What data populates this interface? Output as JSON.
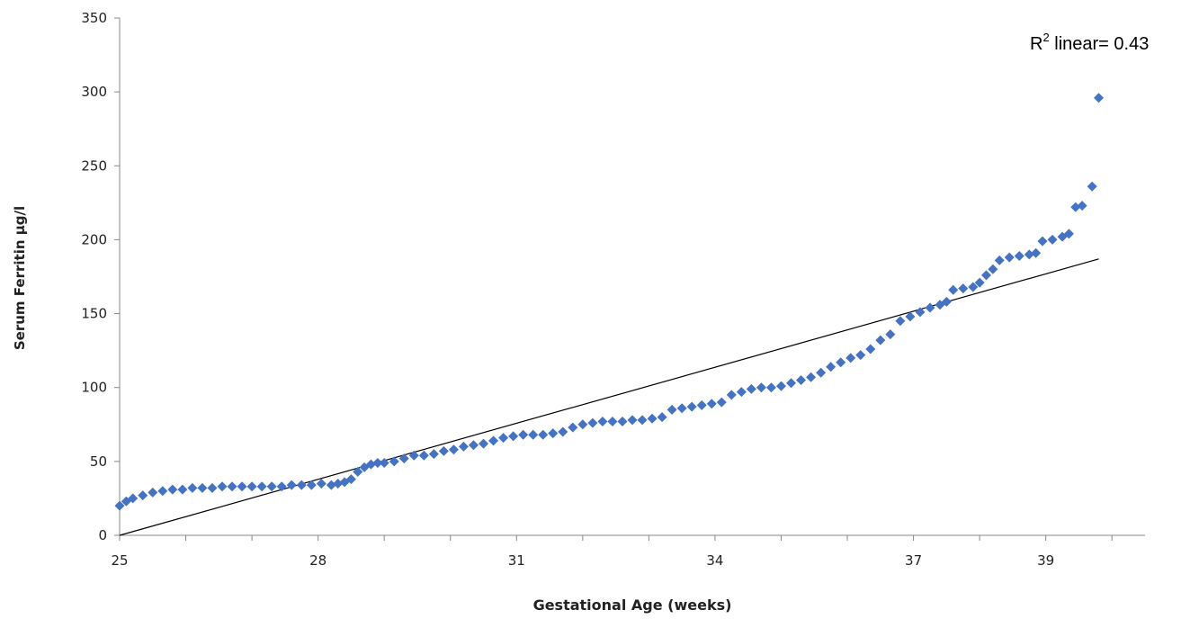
{
  "chart_data": {
    "type": "scatter",
    "xlabel": "Gestational Age (weeks)",
    "ylabel": "Serum Ferritin μg/l",
    "xlim": [
      25,
      40.5
    ],
    "ylim": [
      0,
      350
    ],
    "x_ticks": [
      25,
      28,
      31,
      34,
      37,
      39
    ],
    "y_ticks": [
      0,
      50,
      100,
      150,
      200,
      250,
      300,
      350
    ],
    "grid": false,
    "legend": "none",
    "annotation": {
      "base": "R",
      "sup": "2",
      "text": " linear= 0.43"
    },
    "marker_color": "#4472C4",
    "line_color": "#000000",
    "series": [
      {
        "points": [
          [
            25.0,
            20
          ],
          [
            25.1,
            23
          ],
          [
            25.2,
            25
          ],
          [
            25.35,
            27
          ],
          [
            25.5,
            29
          ],
          [
            25.65,
            30
          ],
          [
            25.8,
            31
          ],
          [
            25.95,
            31
          ],
          [
            26.1,
            32
          ],
          [
            26.25,
            32
          ],
          [
            26.4,
            32
          ],
          [
            26.55,
            33
          ],
          [
            26.7,
            33
          ],
          [
            26.85,
            33
          ],
          [
            27.0,
            33
          ],
          [
            27.15,
            33
          ],
          [
            27.3,
            33
          ],
          [
            27.45,
            33
          ],
          [
            27.6,
            34
          ],
          [
            27.75,
            34
          ],
          [
            27.9,
            34
          ],
          [
            28.05,
            35
          ],
          [
            28.2,
            34
          ],
          [
            28.3,
            35
          ],
          [
            28.4,
            36
          ],
          [
            28.5,
            38
          ],
          [
            28.6,
            43
          ],
          [
            28.7,
            46
          ],
          [
            28.8,
            48
          ],
          [
            28.9,
            49
          ],
          [
            29.0,
            49
          ],
          [
            29.15,
            50
          ],
          [
            29.3,
            52
          ],
          [
            29.45,
            54
          ],
          [
            29.6,
            54
          ],
          [
            29.75,
            55
          ],
          [
            29.9,
            57
          ],
          [
            30.05,
            58
          ],
          [
            30.2,
            60
          ],
          [
            30.35,
            61
          ],
          [
            30.5,
            62
          ],
          [
            30.65,
            64
          ],
          [
            30.8,
            66
          ],
          [
            30.95,
            67
          ],
          [
            31.1,
            68
          ],
          [
            31.25,
            68
          ],
          [
            31.4,
            68
          ],
          [
            31.55,
            69
          ],
          [
            31.7,
            70
          ],
          [
            31.85,
            73
          ],
          [
            32.0,
            75
          ],
          [
            32.15,
            76
          ],
          [
            32.3,
            77
          ],
          [
            32.45,
            77
          ],
          [
            32.6,
            77
          ],
          [
            32.75,
            78
          ],
          [
            32.9,
            78
          ],
          [
            33.05,
            79
          ],
          [
            33.2,
            80
          ],
          [
            33.35,
            85
          ],
          [
            33.5,
            86
          ],
          [
            33.65,
            87
          ],
          [
            33.8,
            88
          ],
          [
            33.95,
            89
          ],
          [
            34.1,
            90
          ],
          [
            34.25,
            95
          ],
          [
            34.4,
            97
          ],
          [
            34.55,
            99
          ],
          [
            34.7,
            100
          ],
          [
            34.85,
            100
          ],
          [
            35.0,
            101
          ],
          [
            35.15,
            103
          ],
          [
            35.3,
            105
          ],
          [
            35.45,
            107
          ],
          [
            35.6,
            110
          ],
          [
            35.75,
            114
          ],
          [
            35.9,
            117
          ],
          [
            36.05,
            120
          ],
          [
            36.2,
            122
          ],
          [
            36.35,
            126
          ],
          [
            36.5,
            132
          ],
          [
            36.65,
            136
          ],
          [
            36.8,
            145
          ],
          [
            36.95,
            148
          ],
          [
            37.1,
            151
          ],
          [
            37.25,
            154
          ],
          [
            37.4,
            156
          ],
          [
            37.5,
            158
          ],
          [
            37.6,
            166
          ],
          [
            37.75,
            167
          ],
          [
            37.9,
            168
          ],
          [
            38.0,
            171
          ],
          [
            38.1,
            176
          ],
          [
            38.2,
            180
          ],
          [
            38.3,
            186
          ],
          [
            38.45,
            188
          ],
          [
            38.6,
            189
          ],
          [
            38.75,
            190
          ],
          [
            38.85,
            191
          ],
          [
            38.95,
            199
          ],
          [
            39.1,
            200
          ],
          [
            39.25,
            202
          ],
          [
            39.35,
            204
          ],
          [
            39.45,
            222
          ],
          [
            39.55,
            223
          ],
          [
            39.7,
            236
          ],
          [
            39.8,
            296
          ]
        ]
      }
    ],
    "trendline": {
      "x": [
        25.0,
        39.8
      ],
      "y": [
        0,
        187
      ]
    }
  }
}
